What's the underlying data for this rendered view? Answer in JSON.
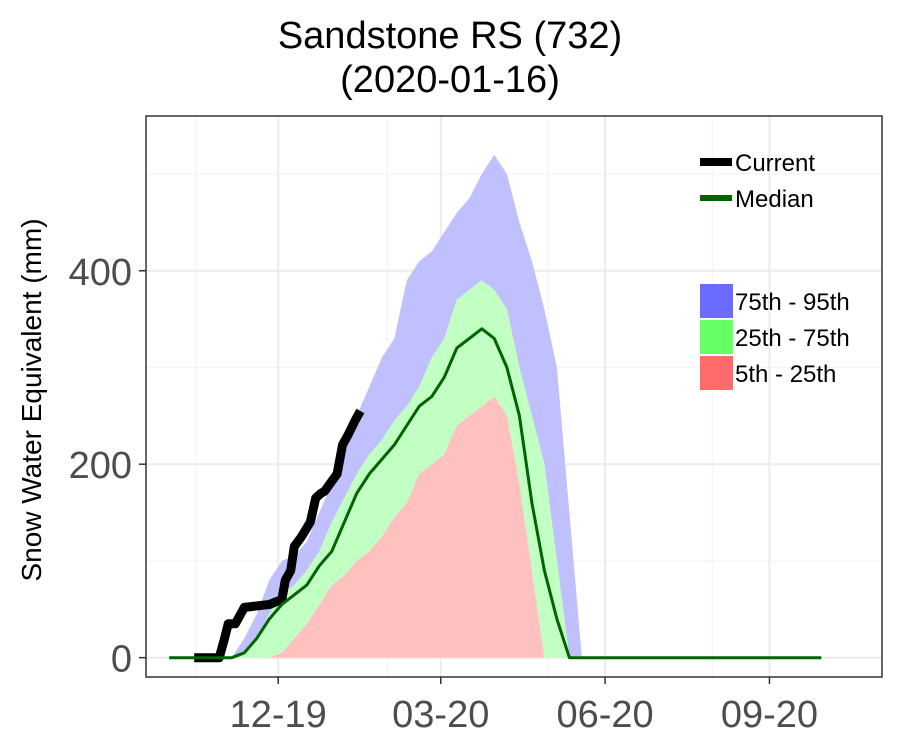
{
  "chart_data": {
    "type": "area",
    "title": "Sandstone RS (732)",
    "subtitle": "(2020-01-16)",
    "xlabel": "",
    "ylabel": "Snow Water Equivalent (mm)",
    "x_axis": {
      "start": "2019-10-01",
      "end": "2020-09-30",
      "ticks": [
        "12-19",
        "03-20",
        "06-20",
        "09-20"
      ]
    },
    "ylim": [
      -20,
      560
    ],
    "y_ticks": [
      0,
      200,
      400
    ],
    "grid": true,
    "legend": {
      "placement": "top-right",
      "lines": [
        {
          "label": "Current",
          "color": "#000000"
        },
        {
          "label": "Median",
          "color": "#006400"
        }
      ],
      "bands": [
        {
          "label": "75th - 95th",
          "color": "#6b6bff"
        },
        {
          "label": "25th - 75th",
          "color": "#66ff66"
        },
        {
          "label": "5th - 25th",
          "color": "#ff6b6b"
        }
      ]
    },
    "band_colors": {
      "p75_p95": "#c0c0ff",
      "p25_p75": "#c2ffc2",
      "p5_p25": "#ffc0c0"
    },
    "percentiles": {
      "dates": [
        "2019-10-20",
        "2019-10-29",
        "2019-11-05",
        "2019-11-12",
        "2019-11-19",
        "2019-11-26",
        "2019-12-03",
        "2019-12-10",
        "2019-12-17",
        "2019-12-24",
        "2019-12-31",
        "2020-01-07",
        "2020-01-14",
        "2020-01-21",
        "2020-01-28",
        "2020-02-04",
        "2020-02-11",
        "2020-02-18",
        "2020-02-25",
        "2020-03-03",
        "2020-03-10",
        "2020-03-17",
        "2020-03-24",
        "2020-03-31",
        "2020-04-07",
        "2020-04-14",
        "2020-04-21",
        "2020-04-28",
        "2020-05-05",
        "2020-05-12",
        "2020-05-19",
        "2020-05-26",
        "2020-06-02",
        "2020-06-09",
        "2020-06-16",
        "2020-06-23",
        "2020-06-30"
      ],
      "p5": [
        0,
        0,
        0,
        0,
        0,
        0,
        0,
        0,
        0,
        0,
        0,
        0,
        0,
        0,
        0,
        0,
        0,
        0,
        0,
        0,
        0,
        0,
        0,
        0,
        0,
        0,
        0,
        0,
        0,
        0,
        0,
        0,
        0,
        0,
        0,
        0,
        0
      ],
      "p25": [
        0,
        0,
        0,
        0,
        0,
        0,
        5,
        20,
        35,
        55,
        75,
        85,
        100,
        110,
        125,
        145,
        160,
        190,
        200,
        210,
        240,
        250,
        260,
        270,
        250,
        180,
        90,
        0,
        0,
        0,
        0,
        0,
        0,
        0,
        0,
        0,
        0
      ],
      "p75": [
        0,
        0,
        0,
        5,
        20,
        45,
        65,
        75,
        90,
        110,
        140,
        165,
        190,
        210,
        225,
        245,
        260,
        280,
        310,
        330,
        370,
        380,
        390,
        380,
        360,
        300,
        250,
        200,
        100,
        0,
        0,
        0,
        0,
        0,
        0,
        0,
        0
      ],
      "p95": [
        0,
        0,
        0,
        20,
        45,
        80,
        100,
        105,
        120,
        150,
        180,
        230,
        250,
        280,
        310,
        330,
        390,
        410,
        420,
        440,
        460,
        475,
        500,
        520,
        500,
        450,
        410,
        360,
        300,
        150,
        0,
        0,
        0,
        0,
        0,
        0,
        0
      ]
    },
    "series": [
      {
        "name": "Current",
        "color": "#000000",
        "x": [
          "2019-10-15",
          "2019-10-22",
          "2019-10-29",
          "2019-11-01",
          "2019-11-03",
          "2019-11-07",
          "2019-11-12",
          "2019-11-26",
          "2019-12-03",
          "2019-12-05",
          "2019-12-08",
          "2019-12-10",
          "2019-12-14",
          "2019-12-19",
          "2019-12-22",
          "2019-12-25",
          "2019-12-27",
          "2020-01-03",
          "2020-01-06",
          "2020-01-09",
          "2020-01-13",
          "2020-01-16"
        ],
        "y": [
          0,
          0,
          0,
          20,
          35,
          35,
          52,
          55,
          60,
          80,
          90,
          115,
          125,
          140,
          165,
          170,
          172,
          190,
          220,
          230,
          245,
          255
        ]
      },
      {
        "name": "Median",
        "color": "#006400",
        "x": [
          "2019-10-01",
          "2019-10-29",
          "2019-11-05",
          "2019-11-12",
          "2019-11-19",
          "2019-11-26",
          "2019-12-03",
          "2019-12-10",
          "2019-12-17",
          "2019-12-24",
          "2019-12-31",
          "2020-01-07",
          "2020-01-14",
          "2020-01-21",
          "2020-01-28",
          "2020-02-04",
          "2020-02-11",
          "2020-02-18",
          "2020-02-25",
          "2020-03-03",
          "2020-03-10",
          "2020-03-17",
          "2020-03-24",
          "2020-03-31",
          "2020-04-07",
          "2020-04-14",
          "2020-04-21",
          "2020-04-28",
          "2020-05-05",
          "2020-05-12",
          "2020-05-19",
          "2020-05-26",
          "2020-06-02",
          "2020-09-30"
        ],
        "y": [
          0,
          0,
          0,
          5,
          20,
          40,
          55,
          65,
          75,
          95,
          110,
          140,
          170,
          190,
          205,
          220,
          240,
          260,
          270,
          290,
          320,
          330,
          340,
          330,
          300,
          250,
          160,
          90,
          40,
          0,
          0,
          0,
          0,
          0
        ]
      }
    ]
  }
}
